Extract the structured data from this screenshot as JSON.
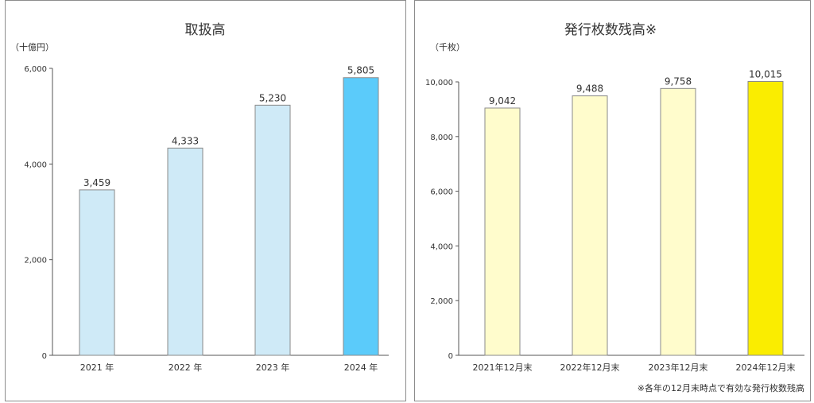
{
  "chart_data": [
    {
      "type": "bar",
      "title": "取扱高",
      "unit": "（十億円）",
      "categories": [
        "2021 年",
        "2022 年",
        "2023 年",
        "2024 年"
      ],
      "values": [
        3459,
        4333,
        5230,
        5805
      ],
      "value_labels": [
        "3,459",
        "4,333",
        "5,230",
        "5,805"
      ],
      "yticks": [
        0,
        2000,
        4000,
        6000
      ],
      "ytick_labels": [
        "0",
        "2,000",
        "4,000",
        "6,000"
      ],
      "ylim": [
        0,
        6000
      ],
      "colors": [
        "#cfeaf7",
        "#cfeaf7",
        "#cfeaf7",
        "#5bcbfa"
      ],
      "grid": false,
      "note": ""
    },
    {
      "type": "bar",
      "title": "発行枚数残高※",
      "unit": "（千枚）",
      "categories": [
        "2021年12月末",
        "2022年12月末",
        "2023年12月末",
        "2024年12月末"
      ],
      "values": [
        9042,
        9488,
        9758,
        10015
      ],
      "value_labels": [
        "9,042",
        "9,488",
        "9,758",
        "10,015"
      ],
      "yticks": [
        0,
        2000,
        4000,
        6000,
        8000,
        10000
      ],
      "ytick_labels": [
        "0",
        "2,000",
        "4,000",
        "6,000",
        "8,000",
        "10,000"
      ],
      "ylim": [
        0,
        10000
      ],
      "colors": [
        "#fffccc",
        "#fffccc",
        "#fffccc",
        "#faed00"
      ],
      "grid": false,
      "note": "※各年の12月末時点で有効な発行枚数残高"
    }
  ]
}
